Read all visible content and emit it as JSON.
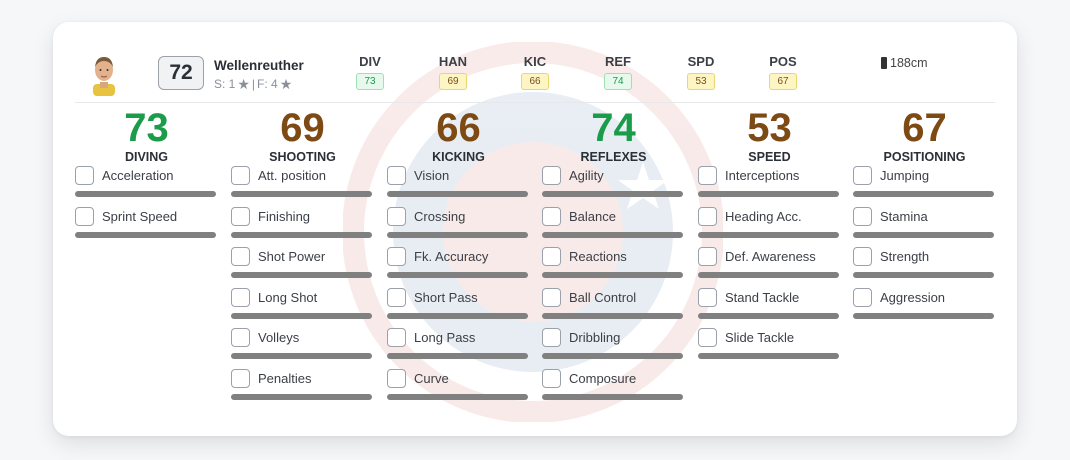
{
  "player": {
    "overall": "72",
    "name": "Wellenreuther",
    "skills_label": "S: 1",
    "separator": "|",
    "weak_foot_label": "F: 4",
    "height": "188cm"
  },
  "header_stats": [
    {
      "label": "DIV",
      "value": "73",
      "tone": "green"
    },
    {
      "label": "HAN",
      "value": "69",
      "tone": "yellow"
    },
    {
      "label": "KIC",
      "value": "66",
      "tone": "yellow"
    },
    {
      "label": "REF",
      "value": "74",
      "tone": "green"
    },
    {
      "label": "SPD",
      "value": "53",
      "tone": "yellow"
    },
    {
      "label": "POS",
      "value": "67",
      "tone": "yellow"
    }
  ],
  "columns": [
    {
      "value": "73",
      "name": "DIVING",
      "tone": "green",
      "items": [
        "Acceleration",
        "Sprint Speed"
      ]
    },
    {
      "value": "69",
      "name": "SHOOTING",
      "tone": "brown",
      "items": [
        "Att. position",
        "Finishing",
        "Shot Power",
        "Long Shot",
        "Volleys",
        "Penalties"
      ]
    },
    {
      "value": "66",
      "name": "KICKING",
      "tone": "brown",
      "items": [
        "Vision",
        "Crossing",
        "Fk. Accuracy",
        "Short Pass",
        "Long Pass",
        "Curve"
      ]
    },
    {
      "value": "74",
      "name": "REFLEXES",
      "tone": "green",
      "items": [
        "Agility",
        "Balance",
        "Reactions",
        "Ball Control",
        "Dribbling",
        "Composure"
      ]
    },
    {
      "value": "53",
      "name": "SPEED",
      "tone": "brown",
      "items": [
        "Interceptions",
        "Heading Acc.",
        "Def. Awareness",
        "Stand Tackle",
        "Slide Tackle"
      ]
    },
    {
      "value": "67",
      "name": "POSITIONING",
      "tone": "brown",
      "items": [
        "Jumping",
        "Stamina",
        "Strength",
        "Aggression"
      ]
    }
  ],
  "colors": {
    "green": "#1a9c4a",
    "brown": "#7d4a14",
    "bar": "#808080"
  },
  "icons": {
    "star": "star-icon",
    "height": "height-icon",
    "avatar": "player-avatar"
  }
}
